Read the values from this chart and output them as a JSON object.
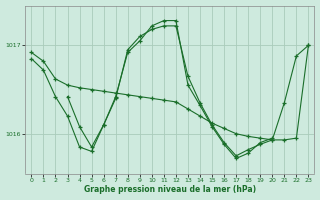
{
  "background_color": "#ceeade",
  "grid_color": "#aaccbb",
  "line_color": "#1a6e2a",
  "title": "Graphe pression niveau de la mer (hPa)",
  "xlim": [
    -0.5,
    23.5
  ],
  "ylim": [
    1015.55,
    1017.45
  ],
  "yticks": [
    1016,
    1017
  ],
  "xticks": [
    0,
    1,
    2,
    3,
    4,
    5,
    6,
    7,
    8,
    9,
    10,
    11,
    12,
    13,
    14,
    15,
    16,
    17,
    18,
    19,
    20,
    21,
    22,
    23
  ],
  "series": [
    {
      "x": [
        0,
        1,
        2,
        3,
        4,
        5,
        6,
        7,
        8,
        9,
        10,
        11,
        12,
        13,
        14,
        15,
        16,
        17,
        18,
        19,
        20,
        21,
        22,
        23
      ],
      "y": [
        1016.92,
        1016.82,
        1016.62,
        1016.55,
        1016.52,
        1016.5,
        1016.48,
        1016.46,
        1016.44,
        1016.42,
        1016.4,
        1016.38,
        1016.36,
        1016.28,
        1016.2,
        1016.12,
        1016.06,
        1016.0,
        1015.97,
        1015.95,
        1015.93,
        1015.93,
        1015.95,
        1017.0
      ]
    },
    {
      "x": [
        0,
        1,
        2,
        3,
        4,
        5,
        6,
        7,
        8,
        9,
        10,
        11,
        12,
        13,
        14,
        15,
        16,
        17,
        18,
        19,
        20,
        21,
        22,
        23
      ],
      "y": [
        1016.85,
        1016.72,
        1016.42,
        1016.2,
        1015.85,
        1015.8,
        1016.1,
        1016.4,
        1016.95,
        1017.1,
        1017.18,
        1017.22,
        1017.22,
        1016.65,
        1016.35,
        1016.1,
        1015.9,
        1015.75,
        1015.82,
        1015.88,
        1015.93,
        1016.35,
        1016.88,
        1017.0
      ]
    },
    {
      "x": [
        3,
        4,
        5,
        6,
        7,
        8,
        9,
        10,
        11,
        12,
        13,
        14,
        15,
        16,
        17,
        18,
        19,
        20
      ],
      "y": [
        1016.42,
        1016.08,
        1015.85,
        1016.1,
        1016.42,
        1016.92,
        1017.05,
        1017.22,
        1017.28,
        1017.28,
        1016.55,
        1016.32,
        1016.08,
        1015.88,
        1015.72,
        1015.78,
        1015.9,
        1015.95
      ]
    }
  ]
}
